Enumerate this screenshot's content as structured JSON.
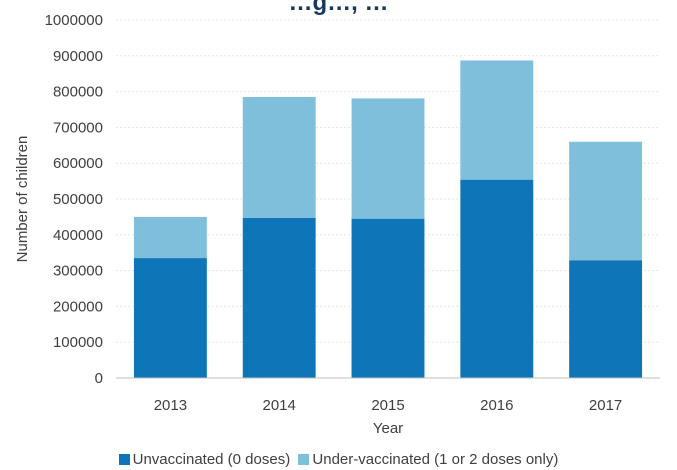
{
  "chart_data": {
    "type": "bar",
    "stacked": true,
    "title_partial": "…g…, …",
    "categories": [
      "2013",
      "2014",
      "2015",
      "2016",
      "2017"
    ],
    "series": [
      {
        "name": "Unvaccinated (0 doses)",
        "color": "#0e76b8",
        "values": [
          335000,
          447000,
          445000,
          554000,
          329000
        ]
      },
      {
        "name": "Under-vaccinated (1 or 2 doses only)",
        "color": "#7fbfdc",
        "values": [
          115000,
          338000,
          336000,
          333000,
          331000
        ]
      }
    ],
    "xlabel": "Year",
    "ylabel": "Number of children",
    "ylim": [
      0,
      1000000
    ],
    "yticks": [
      0,
      100000,
      200000,
      300000,
      400000,
      500000,
      600000,
      700000,
      800000,
      900000,
      1000000
    ],
    "grid": true,
    "legend_position": "bottom"
  }
}
